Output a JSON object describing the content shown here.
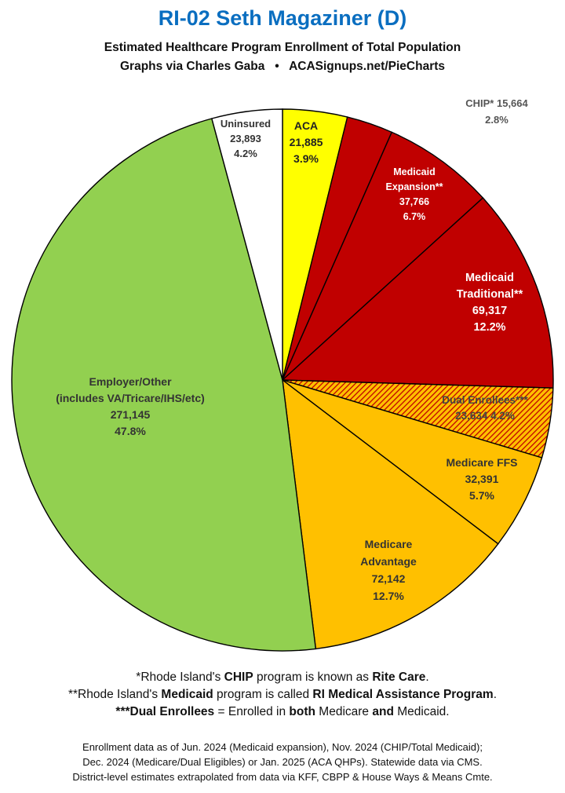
{
  "title": "RI-02 Seth Magaziner (D)",
  "subtitle": "Estimated Healthcare Program Enrollment of Total Population",
  "credit_left": "Graphs via Charles Gaba",
  "credit_sep": "•",
  "credit_right": "ACASignups.net/PieCharts",
  "chart_data": {
    "type": "pie",
    "start_angle": "12 o'clock",
    "direction": "clockwise",
    "slices": [
      {
        "label_lines": [
          "ACA"
        ],
        "value": 21885,
        "value_text": "21,885",
        "percent": "3.9%",
        "color": "#ffff00",
        "pattern": "none",
        "text_color": "#222222"
      },
      {
        "label_lines": [
          "CHIP*"
        ],
        "value": 15664,
        "value_text": "15,664",
        "percent": "2.8%",
        "color": "#c00000",
        "pattern": "none",
        "text_color": "#555555"
      },
      {
        "label_lines": [
          "Medicaid",
          "Expansion**"
        ],
        "value": 37766,
        "value_text": "37,766",
        "percent": "6.7%",
        "color": "#c00000",
        "pattern": "none",
        "text_color": "#ffffff"
      },
      {
        "label_lines": [
          "Medicaid",
          "Traditional**"
        ],
        "value": 69317,
        "value_text": "69,317",
        "percent": "12.2%",
        "color": "#c00000",
        "pattern": "none",
        "text_color": "#ffffff"
      },
      {
        "label_lines": [
          "Dual Enrollees***"
        ],
        "value": 23634,
        "value_text": "23,634",
        "percent": "4.2%",
        "color": "#ffc000",
        "pattern": "hatch",
        "text_color": "#444444"
      },
      {
        "label_lines": [
          "Medicare FFS"
        ],
        "value": 32391,
        "value_text": "32,391",
        "percent": "5.7%",
        "color": "#ffc000",
        "pattern": "none",
        "text_color": "#333333"
      },
      {
        "label_lines": [
          "Medicare",
          "Advantage"
        ],
        "value": 72142,
        "value_text": "72,142",
        "percent": "12.7%",
        "color": "#ffc000",
        "pattern": "none",
        "text_color": "#333333"
      },
      {
        "label_lines": [
          "Employer/Other",
          "(includes VA/Tricare/IHS/etc)"
        ],
        "value": 271145,
        "value_text": "271,145",
        "percent": "47.8%",
        "color": "#92d050",
        "pattern": "none",
        "text_color": "#333333"
      },
      {
        "label_lines": [
          "Uninsured"
        ],
        "value": 23893,
        "value_text": "23,893",
        "percent": "4.2%",
        "color": "#ffffff",
        "pattern": "none",
        "text_color": "#333333"
      }
    ]
  },
  "footnotes": {
    "fn1": {
      "a": "*Rhode Island's ",
      "b": "CHIP",
      "c": " program is known as ",
      "d": "Rite Care",
      "e": "."
    },
    "fn2": {
      "a": "**Rhode Island's ",
      "b": "Medicaid",
      "c": " program is called ",
      "d": "RI Medical Assistance Program",
      "e": "."
    },
    "fn3": {
      "a": "***Dual Enrollees",
      "b": " = Enrolled in ",
      "c": "both",
      "d": " Medicare ",
      "e": "and",
      "f": " Medicaid."
    }
  },
  "source": {
    "line1": "Enrollment data as of Jun. 2024 (Medicaid expansion), Nov. 2024 (CHIP/Total Medicaid);",
    "line2": "Dec. 2024 (Medicare/Dual Eligibles) or Jan. 2025 (ACA QHPs). Statewide data via CMS.",
    "line3": "District-level estimates extrapolated from data via KFF, CBPP & House Ways & Means Cmte."
  }
}
